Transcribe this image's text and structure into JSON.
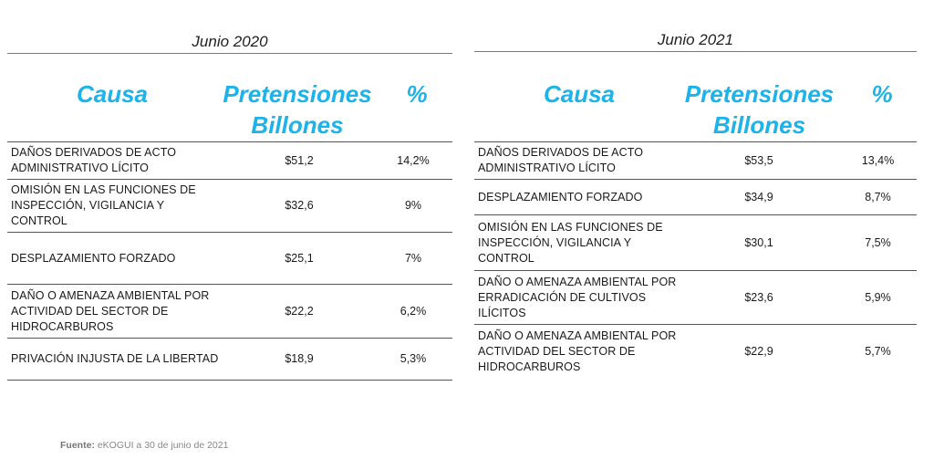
{
  "tables": [
    {
      "period": "Junio 2020",
      "headers": {
        "causa": "Causa",
        "pretensiones_line1": "Pretensiones",
        "pretensiones_line2": "Billones",
        "percent": "%"
      },
      "rows": [
        {
          "causa": "DAÑOS DERIVADOS DE ACTO ADMINISTRATIVO LÍCITO",
          "value": "$51,2",
          "percent": "14,2%"
        },
        {
          "causa": "OMISIÓN EN LAS FUNCIONES DE INSPECCIÓN, VIGILANCIA Y CONTROL",
          "value": "$32,6",
          "percent": "9%"
        },
        {
          "causa": "DESPLAZAMIENTO FORZADO",
          "value": "$25,1",
          "percent": "7%"
        },
        {
          "causa": "DAÑO O AMENAZA AMBIENTAL POR ACTIVIDAD DEL SECTOR DE HIDROCARBUROS",
          "value": "$22,2",
          "percent": "6,2%"
        },
        {
          "causa": "PRIVACIÓN INJUSTA DE LA LIBERTAD",
          "value": "$18,9",
          "percent": "5,3%"
        }
      ]
    },
    {
      "period": "Junio 2021",
      "headers": {
        "causa": "Causa",
        "pretensiones_line1": "Pretensiones",
        "pretensiones_line2": "Billones",
        "percent": "%"
      },
      "rows": [
        {
          "causa": "DAÑOS DERIVADOS DE ACTO ADMINISTRATIVO LÍCITO",
          "value": "$53,5",
          "percent": "13,4%"
        },
        {
          "causa": "DESPLAZAMIENTO FORZADO",
          "value": "$34,9",
          "percent": "8,7%"
        },
        {
          "causa": "OMISIÓN EN LAS FUNCIONES DE INSPECCIÓN, VIGILANCIA Y CONTROL",
          "value": "$30,1",
          "percent": "7,5%"
        },
        {
          "causa": "DAÑO O AMENAZA AMBIENTAL POR ERRADICACIÓN DE CULTIVOS ILÍCITOS",
          "value": "$23,6",
          "percent": "5,9%"
        },
        {
          "causa": "DAÑO O AMENAZA AMBIENTAL POR ACTIVIDAD DEL SECTOR DE HIDROCARBUROS",
          "value": "$22,9",
          "percent": "5,7%"
        }
      ]
    }
  ],
  "source": {
    "label": "Fuente:",
    "text": " eKOGUI a 30 de junio de 2021"
  },
  "colors": {
    "header_accent": "#1bb3ea",
    "rule": "#555555"
  }
}
